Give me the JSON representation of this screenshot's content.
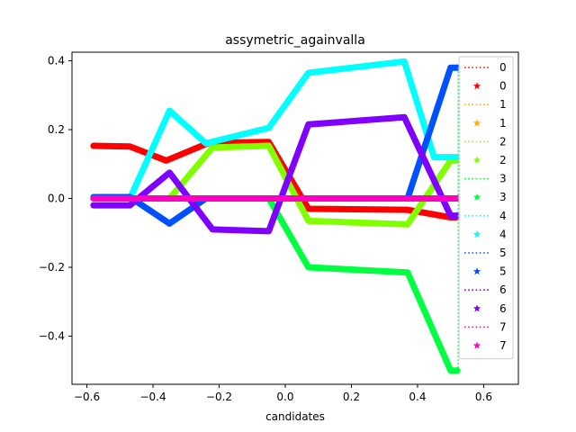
{
  "chart_data": {
    "type": "line",
    "title": "assymetric_againvalla",
    "xlabel": "candidates",
    "ylabel": "",
    "xlim": [
      -0.645,
      0.705
    ],
    "ylim": [
      -0.54,
      0.425
    ],
    "xticks": [
      -0.6,
      -0.4,
      -0.2,
      0.0,
      0.2,
      0.4,
      0.6
    ],
    "xtick_labels": [
      "−0.6",
      "−0.4",
      "−0.2",
      "0.0",
      "0.2",
      "0.4",
      "0.6"
    ],
    "yticks": [
      -0.4,
      -0.2,
      0.0,
      0.2,
      0.4
    ],
    "ytick_labels": [
      "−0.4",
      "−0.2",
      "0.0",
      "0.2",
      "0.4"
    ],
    "grid": false,
    "legend_position": "right",
    "legend": [
      {
        "label": "0",
        "series": 0,
        "style": "dotted"
      },
      {
        "label": "0",
        "series": 0,
        "style": "star"
      },
      {
        "label": "1",
        "series": 1,
        "style": "dotted"
      },
      {
        "label": "1",
        "series": 1,
        "style": "star"
      },
      {
        "label": "2",
        "series": 2,
        "style": "dotted"
      },
      {
        "label": "2",
        "series": 2,
        "style": "star"
      },
      {
        "label": "3",
        "series": 3,
        "style": "dotted"
      },
      {
        "label": "3",
        "series": 3,
        "style": "star"
      },
      {
        "label": "4",
        "series": 4,
        "style": "dotted"
      },
      {
        "label": "4",
        "series": 4,
        "style": "star"
      },
      {
        "label": "5",
        "series": 5,
        "style": "dotted"
      },
      {
        "label": "5",
        "series": 5,
        "style": "star"
      },
      {
        "label": "6",
        "series": 6,
        "style": "dotted"
      },
      {
        "label": "6",
        "series": 6,
        "style": "star"
      },
      {
        "label": "7",
        "series": 7,
        "style": "dotted"
      },
      {
        "label": "7",
        "series": 7,
        "style": "star"
      }
    ],
    "series": [
      {
        "name": "0",
        "color": "#ff0000",
        "x": [
          -0.58,
          -0.47,
          -0.36,
          -0.23,
          -0.05,
          0.07,
          0.37,
          0.5,
          0.52
        ],
        "y": [
          0.153,
          0.151,
          0.11,
          0.162,
          0.164,
          -0.03,
          -0.033,
          -0.055,
          -0.055
        ]
      },
      {
        "name": "1",
        "color": "#ffb000",
        "x": [
          -0.58,
          0.52
        ],
        "y": [
          0.0,
          0.0
        ]
      },
      {
        "name": "2",
        "color": "#80ff00",
        "x": [
          -0.58,
          -0.35,
          -0.22,
          -0.05,
          0.07,
          0.37,
          0.5,
          0.52
        ],
        "y": [
          0.0,
          0.0,
          0.148,
          0.153,
          -0.065,
          -0.075,
          0.11,
          0.11
        ]
      },
      {
        "name": "3",
        "color": "#00ff40",
        "x": [
          -0.58,
          -0.05,
          0.07,
          0.37,
          0.5,
          0.52
        ],
        "y": [
          0.0,
          0.0,
          -0.2,
          -0.215,
          -0.5,
          -0.5
        ]
      },
      {
        "name": "4",
        "color": "#00ffff",
        "x": [
          -0.58,
          -0.47,
          -0.35,
          -0.24,
          -0.05,
          0.07,
          0.36,
          0.45,
          0.52
        ],
        "y": [
          0.0,
          0.0,
          0.255,
          0.16,
          0.205,
          0.365,
          0.398,
          0.12,
          0.12
        ]
      },
      {
        "name": "5",
        "color": "#0050ff",
        "x": [
          -0.58,
          -0.47,
          -0.35,
          -0.24,
          0.37,
          0.5,
          0.52
        ],
        "y": [
          0.004,
          0.004,
          -0.073,
          0.0,
          0.0,
          0.38,
          0.38
        ]
      },
      {
        "name": "6",
        "color": "#8000ff",
        "x": [
          -0.58,
          -0.47,
          -0.35,
          -0.22,
          -0.05,
          0.07,
          0.36,
          0.5,
          0.52
        ],
        "y": [
          -0.02,
          -0.02,
          0.075,
          -0.09,
          -0.095,
          0.215,
          0.236,
          -0.05,
          -0.05
        ]
      },
      {
        "name": "7",
        "color": "#ff00c0",
        "x": [
          -0.58,
          0.52
        ],
        "y": [
          0.0,
          0.0
        ]
      }
    ]
  }
}
